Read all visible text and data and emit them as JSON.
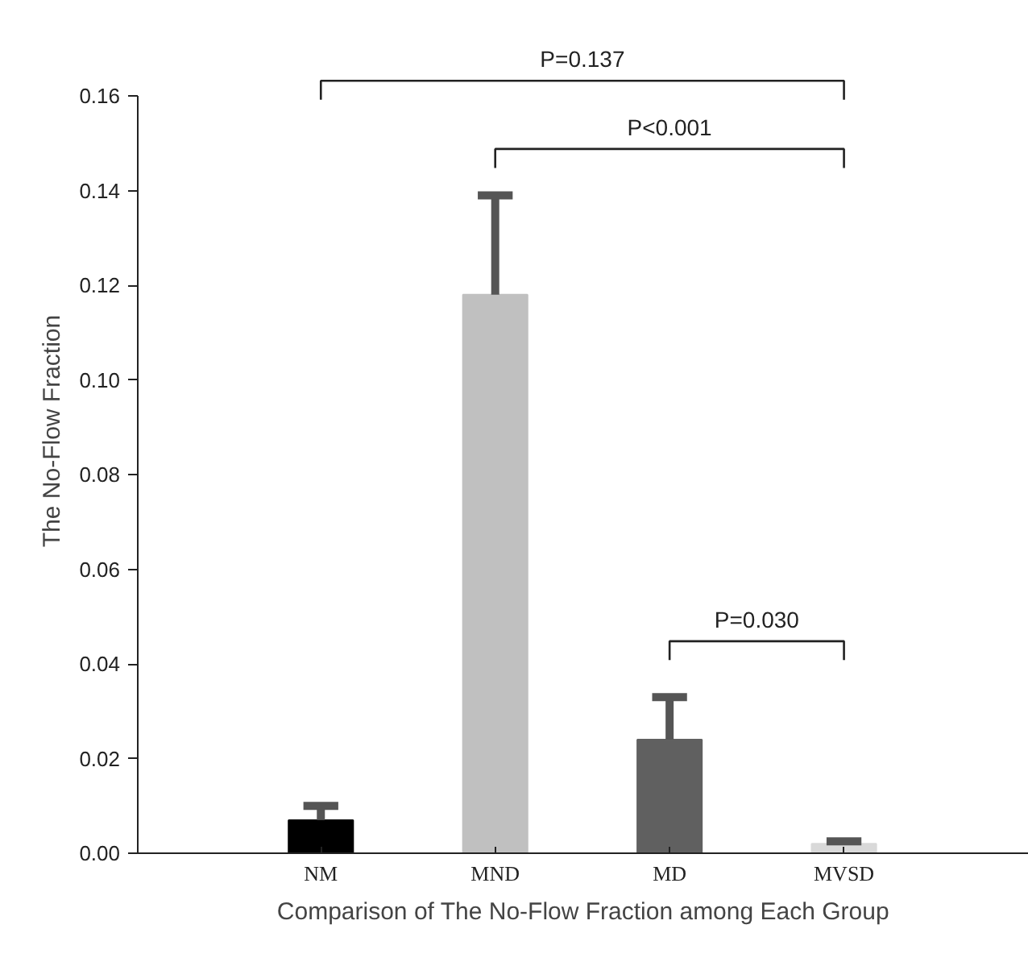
{
  "chart_data": {
    "type": "bar",
    "xlabel": "Comparison of The No-Flow Fraction among Each Group",
    "ylabel": "The No-Flow Fraction",
    "categories": [
      "NM",
      "MND",
      "MD",
      "MVSD"
    ],
    "values": [
      0.007,
      0.118,
      0.024,
      0.002
    ],
    "colors": [
      "#000000",
      "#c0c0c0",
      "#606060",
      "#d9d9d9"
    ],
    "errors": [
      [
        0.007,
        0.01
      ],
      [
        0.118,
        0.139
      ],
      [
        0.024,
        0.033
      ],
      [
        0.002,
        0.0025
      ]
    ],
    "ylim": [
      0,
      0.16
    ],
    "yticks": [
      {
        "value": 0,
        "label": "0.00"
      },
      {
        "value": 0.02,
        "label": "0.02"
      },
      {
        "value": 0.04,
        "label": "0.04"
      },
      {
        "value": 0.06,
        "label": "0.06"
      },
      {
        "value": 0.08,
        "label": "0.08"
      },
      {
        "value": 0.1,
        "label": "0.10"
      },
      {
        "value": 0.12,
        "label": "0.12"
      },
      {
        "value": 0.14,
        "label": "0.14"
      },
      {
        "value": 0.16,
        "label": "0.16"
      }
    ],
    "annotations": [
      "P=0.137",
      "P<0.001",
      "P=0.030"
    ],
    "grid": false
  }
}
